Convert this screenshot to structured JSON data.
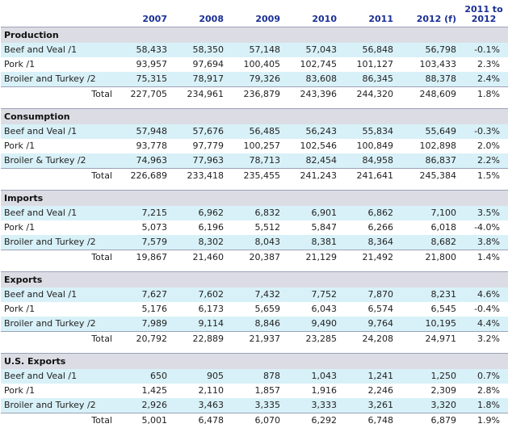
{
  "header": {
    "col0": "",
    "years": [
      "2007",
      "2008",
      "2009",
      "2010",
      "2011",
      "2012 (f)"
    ],
    "change_line1": "2011 to",
    "change_line2": "2012"
  },
  "sections": [
    {
      "title": "Production",
      "rows": [
        {
          "label": "Beef and Veal /1",
          "values": [
            "58,433",
            "58,350",
            "57,148",
            "57,043",
            "56,848",
            "56,798"
          ],
          "change": "-0.1%"
        },
        {
          "label": "Pork /1",
          "values": [
            "93,957",
            "97,694",
            "100,405",
            "102,745",
            "101,127",
            "103,433"
          ],
          "change": "2.3%"
        },
        {
          "label": "Broiler and Turkey /2",
          "values": [
            "75,315",
            "78,917",
            "79,326",
            "83,608",
            "86,345",
            "88,378"
          ],
          "change": "2.4%"
        }
      ],
      "total": {
        "label": "Total",
        "values": [
          "227,705",
          "234,961",
          "236,879",
          "243,396",
          "244,320",
          "248,609"
        ],
        "change": "1.8%"
      }
    },
    {
      "title": "Consumption",
      "rows": [
        {
          "label": "Beef and Veal /1",
          "values": [
            "57,948",
            "57,676",
            "56,485",
            "56,243",
            "55,834",
            "55,649"
          ],
          "change": "-0.3%"
        },
        {
          "label": "Pork /1",
          "values": [
            "93,778",
            "97,779",
            "100,257",
            "102,546",
            "100,849",
            "102,898"
          ],
          "change": "2.0%"
        },
        {
          "label": "Broiler & Turkey /2",
          "values": [
            "74,963",
            "77,963",
            "78,713",
            "82,454",
            "84,958",
            "86,837"
          ],
          "change": "2.2%"
        }
      ],
      "total": {
        "label": "Total",
        "values": [
          "226,689",
          "233,418",
          "235,455",
          "241,243",
          "241,641",
          "245,384"
        ],
        "change": "1.5%"
      }
    },
    {
      "title": "Imports",
      "rows": [
        {
          "label": "Beef and Veal /1",
          "values": [
            "7,215",
            "6,962",
            "6,832",
            "6,901",
            "6,862",
            "7,100"
          ],
          "change": "3.5%"
        },
        {
          "label": "Pork /1",
          "values": [
            "5,073",
            "6,196",
            "5,512",
            "5,847",
            "6,266",
            "6,018"
          ],
          "change": "-4.0%"
        },
        {
          "label": "Broiler and Turkey /2",
          "values": [
            "7,579",
            "8,302",
            "8,043",
            "8,381",
            "8,364",
            "8,682"
          ],
          "change": "3.8%"
        }
      ],
      "total": {
        "label": "Total",
        "values": [
          "19,867",
          "21,460",
          "20,387",
          "21,129",
          "21,492",
          "21,800"
        ],
        "change": "1.4%"
      }
    },
    {
      "title": "Exports",
      "rows": [
        {
          "label": "Beef and Veal /1",
          "values": [
            "7,627",
            "7,602",
            "7,432",
            "7,752",
            "7,870",
            "8,231"
          ],
          "change": "4.6%"
        },
        {
          "label": "Pork /1",
          "values": [
            "5,176",
            "6,173",
            "5,659",
            "6,043",
            "6,574",
            "6,545"
          ],
          "change": "-0.4%"
        },
        {
          "label": "Broiler and Turkey /2",
          "values": [
            "7,989",
            "9,114",
            "8,846",
            "9,490",
            "9,764",
            "10,195"
          ],
          "change": "4.4%"
        }
      ],
      "total": {
        "label": "Total",
        "values": [
          "20,792",
          "22,889",
          "21,937",
          "23,285",
          "24,208",
          "24,971"
        ],
        "change": "3.2%"
      }
    },
    {
      "title": "U.S. Exports",
      "rows": [
        {
          "label": "Beef and Veal /1",
          "values": [
            "650",
            "905",
            "878",
            "1,043",
            "1,241",
            "1,250"
          ],
          "change": "0.7%"
        },
        {
          "label": "Pork /1",
          "values": [
            "1,425",
            "2,110",
            "1,857",
            "1,916",
            "2,246",
            "2,309"
          ],
          "change": "2.8%"
        },
        {
          "label": "Broiler and Turkey /2",
          "values": [
            "2,926",
            "3,463",
            "3,335",
            "3,333",
            "3,261",
            "3,320"
          ],
          "change": "1.8%"
        }
      ],
      "total": {
        "label": "Total",
        "values": [
          "5,001",
          "6,478",
          "6,070",
          "6,292",
          "6,748",
          "6,879"
        ],
        "change": "1.9%"
      }
    }
  ],
  "colors": {
    "header_text": "#1a2f96",
    "section_bg": "#dcdde4",
    "alt_row_bg": "#d8f1f8",
    "rule": "#9aa1b8"
  }
}
